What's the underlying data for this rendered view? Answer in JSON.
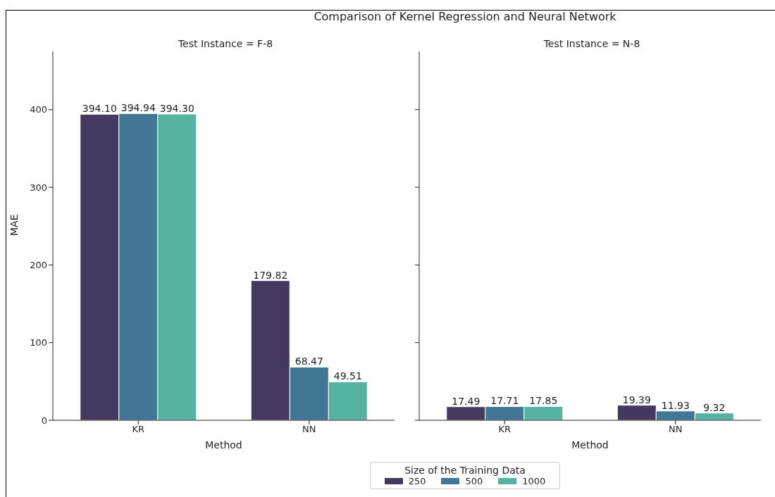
{
  "chart_data": [
    {
      "type": "bar",
      "title": "Comparison of Kernel Regression and Neural Network",
      "subtitle": "Test Instance = F-8",
      "xlabel": "Method",
      "ylabel": "MAE",
      "categories": [
        "KR",
        "NN"
      ],
      "legend_title": "Size of the Training Data",
      "legend": "bottom",
      "ylim": [
        0,
        475
      ],
      "yticks": [
        0,
        100,
        200,
        300,
        400
      ],
      "series": [
        {
          "name": "250",
          "color": "#443a5f",
          "values": [
            394.1,
            179.82
          ],
          "value_labels": [
            "394.10",
            "179.82"
          ]
        },
        {
          "name": "500",
          "color": "#417694",
          "values": [
            394.94,
            68.47
          ],
          "value_labels": [
            "394.94",
            "68.47"
          ]
        },
        {
          "name": "1000",
          "color": "#56b3a0",
          "values": [
            394.3,
            49.51
          ],
          "value_labels": [
            "394.30",
            "49.51"
          ]
        }
      ]
    },
    {
      "type": "bar",
      "subtitle": "Test Instance = N-8",
      "xlabel": "Method",
      "categories": [
        "KR",
        "NN"
      ],
      "tick_labels": "x",
      "ylim": [
        0,
        475
      ],
      "yticks": [
        0,
        100,
        200,
        300,
        400
      ],
      "series": [
        {
          "name": "250",
          "color": "#443a5f",
          "values": [
            17.49,
            19.39
          ],
          "value_labels": [
            "17.49",
            "19.39"
          ]
        },
        {
          "name": "500",
          "color": "#417694",
          "values": [
            17.71,
            11.93
          ],
          "value_labels": [
            "17.71",
            "11.93"
          ]
        },
        {
          "name": "1000",
          "color": "#56b3a0",
          "values": [
            17.85,
            9.32
          ],
          "value_labels": [
            "17.85",
            "9.32"
          ]
        }
      ]
    }
  ]
}
